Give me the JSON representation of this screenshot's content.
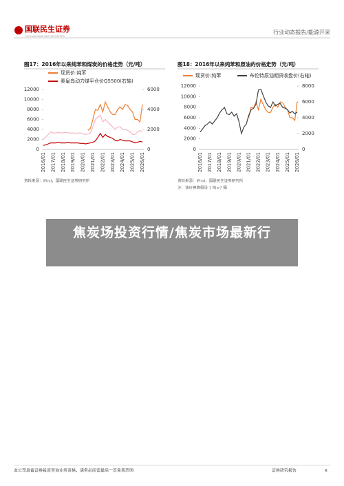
{
  "header": {
    "logo": "国联民生证券",
    "logo_en": "GUOLIAN MINSHENG SECURITIES",
    "section": "行业动态报告/能源开采"
  },
  "chart_data": [
    {
      "type": "line",
      "title": "图17：2016年以来纯苯和煤炭的价格走势（元/吨）",
      "categories": [
        "2016/01",
        null,
        null,
        null,
        "2017/01",
        null,
        null,
        null,
        "2018/01",
        null,
        null,
        null,
        "2019/01",
        null,
        null,
        null,
        "2020/01",
        null,
        null,
        null,
        "2021/01",
        null,
        null,
        null,
        "2022/01",
        null,
        null,
        null,
        "2023/01",
        null,
        null,
        null,
        "2024/01",
        null,
        null,
        null,
        "2025/01",
        null,
        null,
        null,
        "2026/01"
      ],
      "series": [
        {
          "name": "现货价:纯苯",
          "color": "#ed7d31",
          "values": [
            null,
            null,
            null,
            null,
            null,
            null,
            null,
            null,
            null,
            null,
            null,
            null,
            null,
            null,
            null,
            null,
            null,
            null,
            3800,
            4200,
            6000,
            8000,
            7800,
            9000,
            7500,
            9500,
            8500,
            7500,
            7000,
            7000,
            8000,
            8500,
            8000,
            9000,
            8800,
            8000,
            7500,
            6000,
            6000,
            5500,
            9000
          ]
        },
        {
          "color": "#f4b6c2",
          "values": [
            2000,
            2500,
            3000,
            3500,
            3300,
            3300,
            3400,
            3300,
            3300,
            3400,
            3300,
            3300,
            3300,
            3200,
            3300,
            3300,
            3100,
            3000,
            3100,
            3300,
            4500,
            6000,
            6500,
            6800,
            5500,
            6000,
            5500,
            5000,
            4500,
            4000,
            4500,
            4500,
            4000,
            4000,
            3800,
            3500,
            3000,
            3000,
            3500,
            3800,
            3500
          ]
        },
        {
          "name": "秦皇岛动力煤平仓价Q5500(右轴)",
          "color": "#c00000",
          "axis": "y2",
          "values": [
            400,
            450,
            550,
            650,
            650,
            650,
            700,
            650,
            650,
            650,
            700,
            650,
            650,
            650,
            650,
            600,
            600,
            550,
            600,
            650,
            700,
            850,
            1200,
            1600,
            1200,
            1500,
            1300,
            1200,
            1100,
            900,
            850,
            1000,
            900,
            850,
            850,
            850,
            750,
            650,
            700,
            800,
            750
          ]
        }
      ],
      "ylim": [
        0,
        12000
      ],
      "yticks": [
        0,
        2000,
        4000,
        6000,
        8000,
        10000,
        12000
      ],
      "y2lim": [
        0,
        6000
      ],
      "y2ticks": [
        0,
        2000,
        4000,
        6000
      ],
      "source": "资料来源：iFind，国联民生证券研究所"
    },
    {
      "type": "line",
      "title": "图18：2016年以来纯苯和原油的价格走势（元/吨）",
      "categories": [
        "2016/01",
        null,
        null,
        null,
        "2017/01",
        null,
        null,
        null,
        "2018/01",
        null,
        null,
        null,
        "2019/01",
        null,
        null,
        null,
        "2020/01",
        null,
        null,
        null,
        "2021/01",
        null,
        null,
        null,
        "2022/01",
        null,
        null,
        null,
        "2023/01",
        null,
        null,
        null,
        "2024/01",
        null,
        null,
        null,
        "2025/01",
        null,
        null,
        null,
        "2026/01"
      ],
      "series": [
        {
          "name": "现货价:纯苯",
          "color": "#ed7d31",
          "values": [
            null,
            null,
            null,
            null,
            null,
            null,
            null,
            null,
            null,
            null,
            null,
            null,
            null,
            null,
            null,
            null,
            null,
            null,
            null,
            null,
            6000,
            8000,
            7800,
            9000,
            7500,
            9500,
            8500,
            7500,
            7000,
            7000,
            8000,
            8500,
            8000,
            9000,
            8800,
            8000,
            7500,
            6000,
            6000,
            5500,
            9000
          ]
        },
        {
          "name": "布伦特原油期货收盘价(右轴)",
          "color": "#404040",
          "axis": "y2",
          "values": [
            2200,
            2600,
            3000,
            3200,
            3500,
            3200,
            3600,
            4000,
            4600,
            5000,
            5300,
            4500,
            4400,
            4700,
            4200,
            4500,
            3500,
            2000,
            2800,
            3200,
            4300,
            5000,
            5200,
            5700,
            7500,
            7600,
            6800,
            6000,
            5500,
            5300,
            6000,
            5500,
            5700,
            5800,
            5300,
            5200,
            5000,
            4600,
            4800,
            4500,
            4700
          ]
        }
      ],
      "ylim": [
        0,
        12000
      ],
      "yticks": [
        0,
        2000,
        4000,
        6000,
        8000,
        10000,
        12000
      ],
      "y2lim": [
        0,
        8000
      ],
      "y2ticks": [
        0,
        2000,
        4000,
        6000,
        8000
      ],
      "source": "资料来源：iFind，国联民生证券研究所",
      "note": "注：油价换算假设 1 吨=7 桶"
    }
  ],
  "overlay": "焦炭场投资行情/焦炭市场最新行",
  "footer": {
    "disclaimer": "本公司具备证券投资咨询业务资格，请务必阅读最后一页免责声明",
    "type": "证券研究报告",
    "page": "8"
  }
}
